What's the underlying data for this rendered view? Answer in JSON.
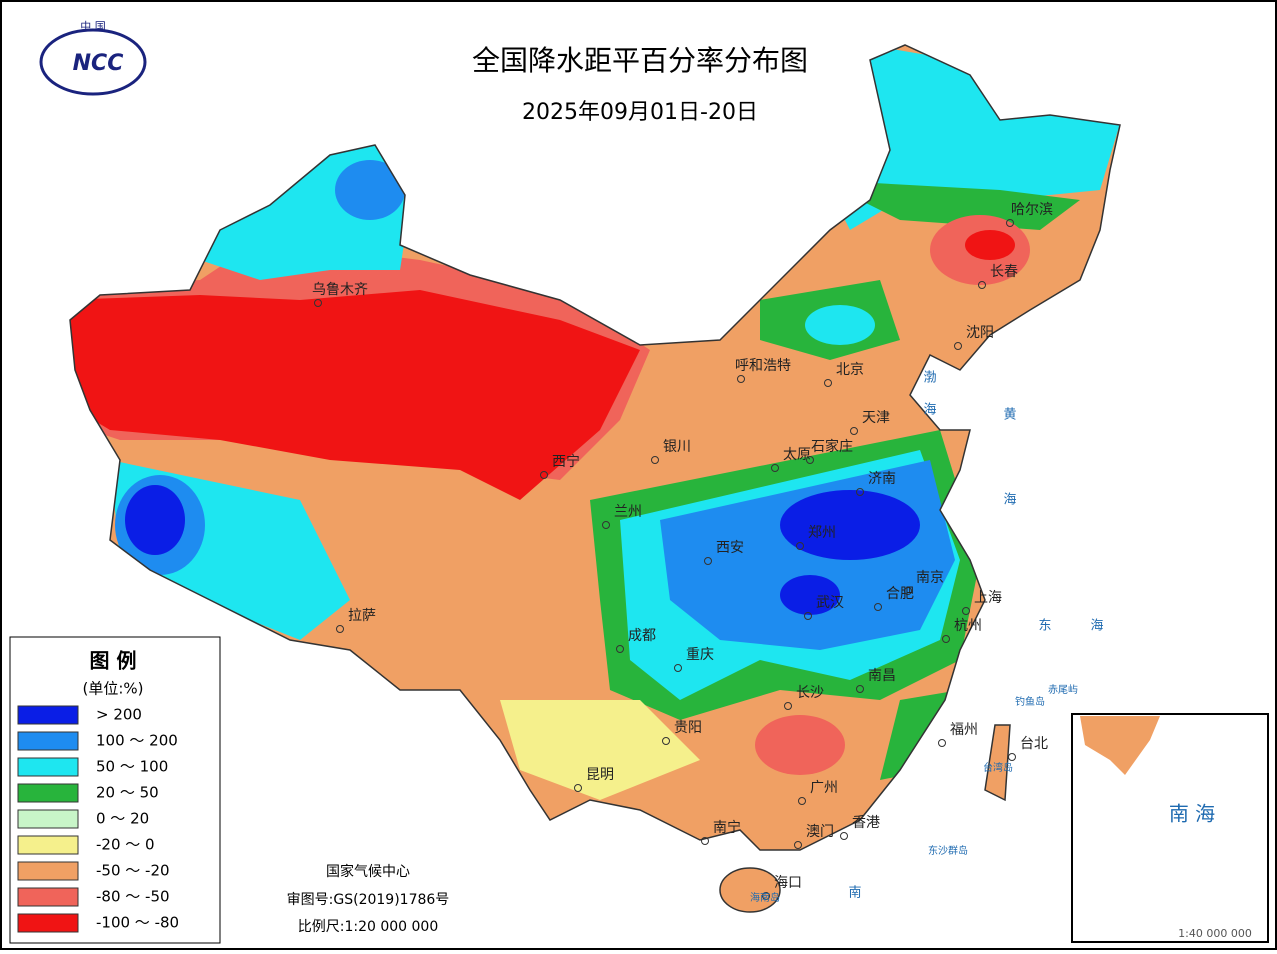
{
  "header": {
    "logo_top": "中 国",
    "logo_text": "NCC",
    "title": "全国降水距平百分率分布图",
    "subtitle": "2025年09月01日-20日"
  },
  "legend": {
    "title": "图 例",
    "unit": "(单位:%)",
    "items": [
      {
        "label": "> 200",
        "color": "#0a1ee6"
      },
      {
        "label": "100 ～ 200",
        "color": "#1e8cf0"
      },
      {
        "label": "50 ～ 100",
        "color": "#1ee6f0"
      },
      {
        "label": "20 ～ 50",
        "color": "#28b43c"
      },
      {
        "label": "0 ～ 20",
        "color": "#c8f5c8"
      },
      {
        "label": "-20 ～ 0",
        "color": "#f5f08c"
      },
      {
        "label": "-50 ～ -20",
        "color": "#f0a064"
      },
      {
        "label": "-80 ～ -50",
        "color": "#f0645a"
      },
      {
        "label": "-100 ～ -80",
        "color": "#f01414"
      }
    ]
  },
  "cities": [
    "乌鲁木齐",
    "哈尔滨",
    "长春",
    "沈阳",
    "呼和浩特",
    "北京",
    "天津",
    "石家庄",
    "太原",
    "济南",
    "银川",
    "西宁",
    "兰州",
    "西安",
    "郑州",
    "南京",
    "合肥",
    "上海",
    "杭州",
    "武汉",
    "成都",
    "重庆",
    "拉萨",
    "南昌",
    "长沙",
    "贵阳",
    "福州",
    "台北",
    "昆明",
    "广州",
    "南宁",
    "香港",
    "澳门",
    "海口"
  ],
  "places": [
    "渤",
    "海",
    "黄",
    "海",
    "东",
    "海",
    "钓鱼岛",
    "赤尾屿",
    "台湾岛",
    "东沙群岛",
    "海南岛",
    "南"
  ],
  "footer": [
    "国家气候中心",
    "审图号:GS(2019)1786号",
    "比例尺:1:20 000 000"
  ],
  "inset": {
    "label": "南 海",
    "scale": "1:40 000 000"
  }
}
